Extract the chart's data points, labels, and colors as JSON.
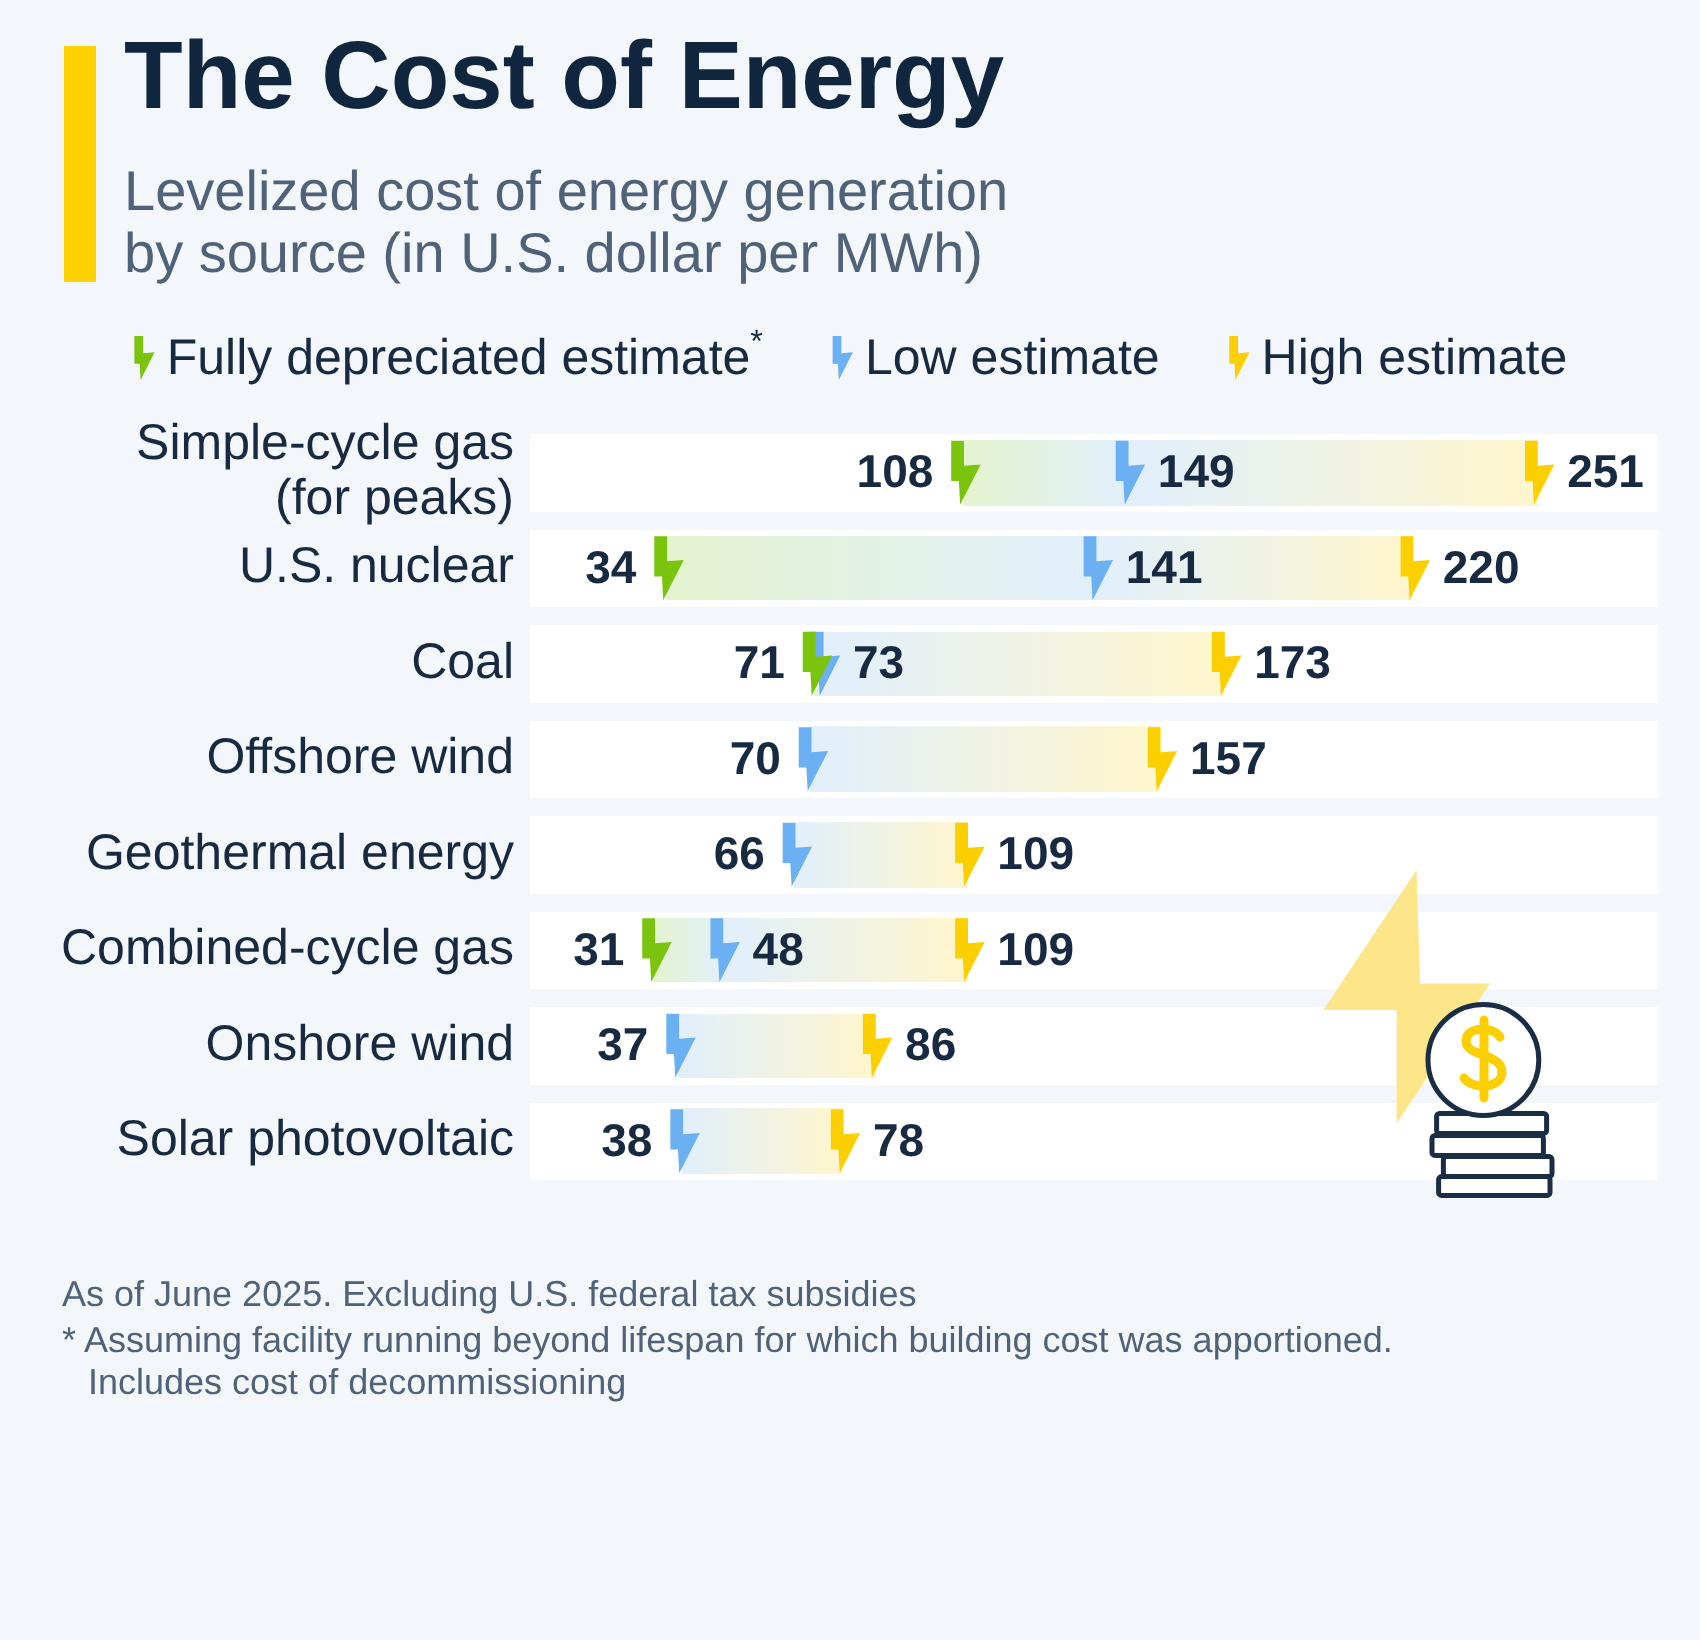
{
  "chart_data": {
    "type": "scatter",
    "title": "The Cost of Energy",
    "subtitle": "Levelized cost of energy generation by source (in U.S. dollar per MWh)",
    "orientation": "horizontal",
    "categories": [
      "Simple-cycle gas\n(for peaks)",
      "U.S. nuclear",
      "Coal",
      "Offshore wind",
      "Geothermal energy",
      "Combined-cycle gas",
      "Onshore wind",
      "Solar photovoltaic"
    ],
    "series": [
      {
        "name": "Fully depreciated estimate$^{*}$",
        "color": "#7ac40e",
        "values": [
          108,
          34,
          71,
          null,
          null,
          31,
          null,
          null
        ]
      },
      {
        "name": "Low estimate",
        "color": "#6ab0f3",
        "values": [
          149,
          141,
          73,
          70,
          66,
          48,
          37,
          38
        ]
      },
      {
        "name": "High estimate",
        "color": "#fcd000",
        "values": [
          251,
          220,
          173,
          157,
          109,
          109,
          86,
          78
        ]
      }
    ],
    "tick_labels": "y",
    "data_labels": true,
    "legend": "top",
    "grid": "y",
    "annotations": [
      "As of June 2025. Excluding U.S. federal tax subsidies",
      "* Assuming facility running beyond lifespan for which building cost was apportioned. Includes cost of decommissioning"
    ]
  }
}
